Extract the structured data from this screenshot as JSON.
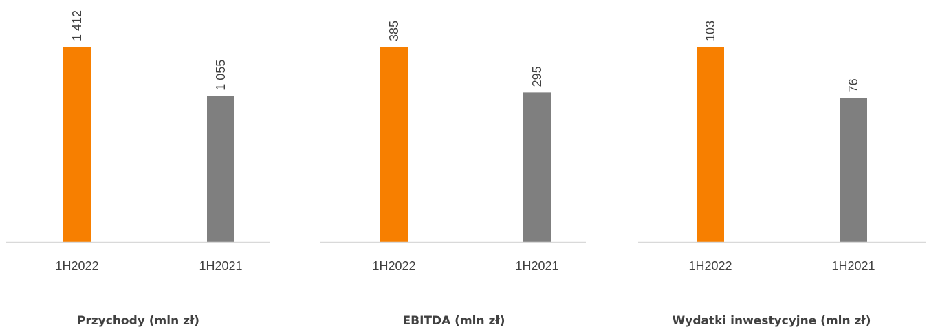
{
  "colors": {
    "current": "#f77f00",
    "previous": "#7f7f7f",
    "axis": "#d9d9d9",
    "text": "#404040"
  },
  "chart_data": [
    {
      "type": "bar",
      "title": "Przychody (mln zł)",
      "categories": [
        "1H2022",
        "1H2021"
      ],
      "values": [
        1412,
        1055
      ],
      "data_labels": [
        "1 412",
        "1 055"
      ],
      "grid": false
    },
    {
      "type": "bar",
      "title": "EBITDA (mln zł)",
      "categories": [
        "1H2022",
        "1H2021"
      ],
      "values": [
        385,
        295
      ],
      "data_labels": [
        "385",
        "295"
      ],
      "grid": false
    },
    {
      "type": "bar",
      "title": "Wydatki inwestycyjne (mln zł)",
      "categories": [
        "1H2022",
        "1H2021"
      ],
      "values": [
        103,
        76
      ],
      "data_labels": [
        "103",
        "76"
      ],
      "grid": false
    }
  ]
}
